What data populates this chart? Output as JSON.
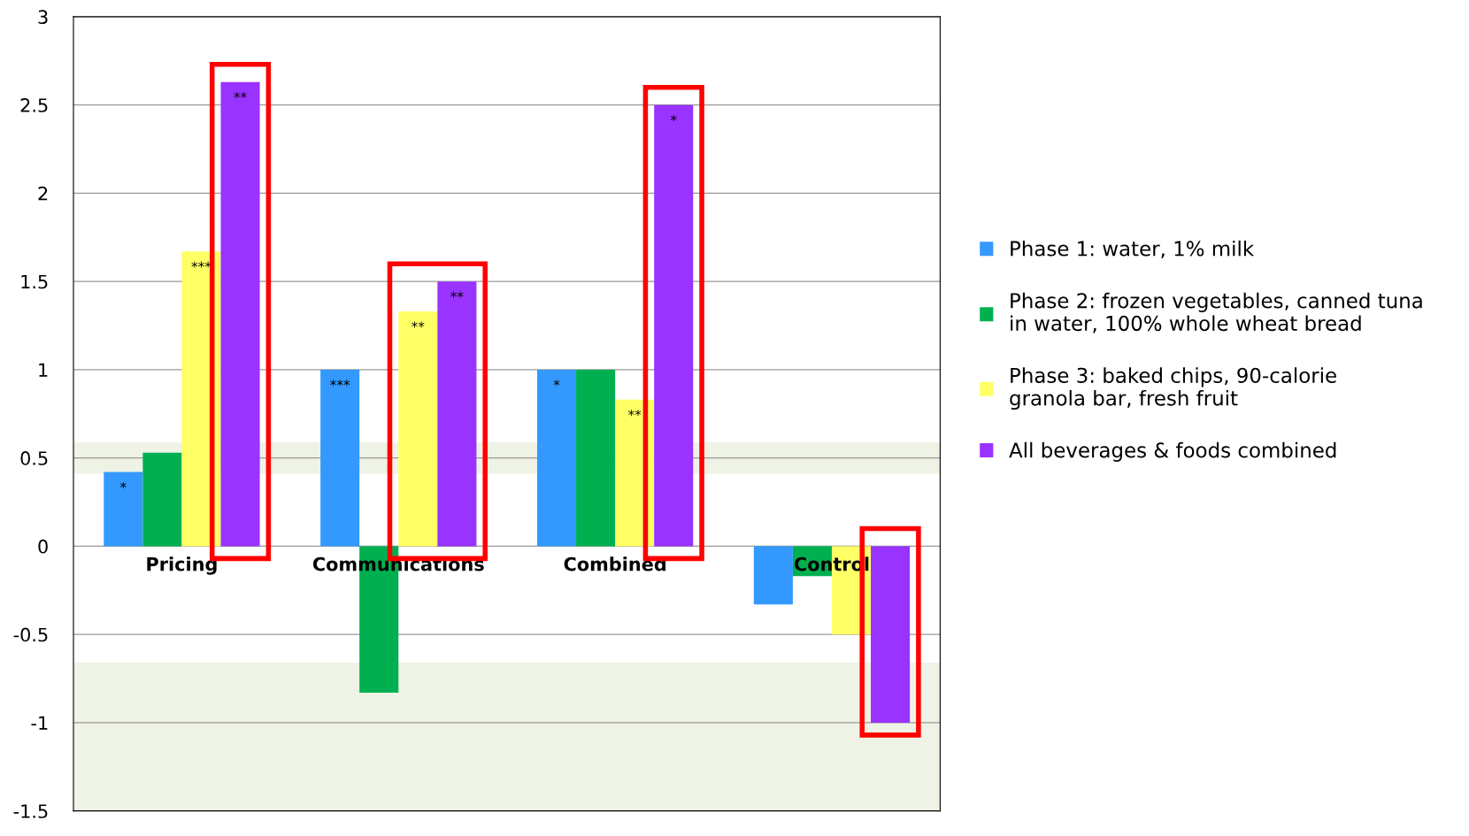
{
  "chart_data": {
    "type": "bar",
    "categories": [
      "Pricing",
      "Communications",
      "Combined",
      "Control"
    ],
    "series": [
      {
        "name": "Phase 1: water, 1% milk",
        "color": "#3399ff",
        "values": [
          0.42,
          1.0,
          1.0,
          -0.33
        ],
        "value_labels": [
          "*",
          "***",
          "*",
          null
        ]
      },
      {
        "name": "Phase 2: frozen vegetables, canned tuna\nin water, 100% whole wheat bread",
        "color": "#00b050",
        "values": [
          0.53,
          -0.83,
          1.0,
          -0.17
        ]
      },
      {
        "name": "Phase 3: baked chips, 90-calorie\ngranola bar, fresh fruit",
        "color": "#ffff66",
        "values": [
          1.67,
          1.33,
          0.83,
          -0.5
        ],
        "value_labels": [
          "***",
          "**",
          "**",
          null
        ]
      },
      {
        "name": "All beverages & foods combined",
        "color": "#9933ff",
        "values": [
          2.63,
          1.5,
          2.5,
          -1.0
        ],
        "value_labels": [
          "**",
          "**",
          "*",
          null
        ]
      }
    ],
    "ylim": [
      -1.5,
      3
    ],
    "yticks": [
      -1.5,
      -1,
      -0.5,
      0,
      0.5,
      1,
      1.5,
      2,
      2.5,
      3
    ],
    "grid": "y",
    "legend": "right",
    "bands": [
      {
        "axis": "y",
        "from": 0.41,
        "to": 0.59,
        "color": "#eef3e6"
      },
      {
        "axis": "y",
        "from": -1.5,
        "to": -0.66,
        "color": "#eef3e6"
      }
    ]
  }
}
